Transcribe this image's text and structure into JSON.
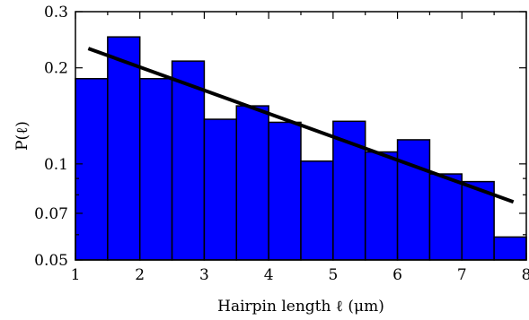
{
  "chart_data": {
    "type": "bar",
    "xlabel": "Hairpin length ℓ (μm)",
    "ylabel": "P(ℓ)",
    "yscale": "log",
    "xlim": [
      1,
      8
    ],
    "ylim": [
      0.05,
      0.3
    ],
    "x_ticks": [
      "1",
      "2",
      "3",
      "4",
      "5",
      "6",
      "7",
      "8"
    ],
    "y_ticks": [
      {
        "value": 0.05,
        "label": "0.05"
      },
      {
        "value": 0.07,
        "label": "0.07"
      },
      {
        "value": 0.1,
        "label": "0.1"
      },
      {
        "value": 0.2,
        "label": "0.2"
      },
      {
        "value": 0.3,
        "label": "0.3"
      }
    ],
    "bins": [
      {
        "x0": 1.0,
        "x1": 1.5,
        "value": 0.185
      },
      {
        "x0": 1.5,
        "x1": 2.0,
        "value": 0.25
      },
      {
        "x0": 2.0,
        "x1": 2.5,
        "value": 0.185
      },
      {
        "x0": 2.5,
        "x1": 3.0,
        "value": 0.21
      },
      {
        "x0": 3.0,
        "x1": 3.5,
        "value": 0.138
      },
      {
        "x0": 3.5,
        "x1": 4.0,
        "value": 0.152
      },
      {
        "x0": 4.0,
        "x1": 4.5,
        "value": 0.135
      },
      {
        "x0": 4.5,
        "x1": 5.0,
        "value": 0.102
      },
      {
        "x0": 5.0,
        "x1": 5.5,
        "value": 0.136
      },
      {
        "x0": 5.5,
        "x1": 6.0,
        "value": 0.109
      },
      {
        "x0": 6.0,
        "x1": 6.5,
        "value": 0.119
      },
      {
        "x0": 6.5,
        "x1": 7.0,
        "value": 0.093
      },
      {
        "x0": 7.0,
        "x1": 7.5,
        "value": 0.088
      },
      {
        "x0": 7.5,
        "x1": 8.0,
        "value": 0.059
      }
    ],
    "fit_line": {
      "x": [
        1.2,
        7.8
      ],
      "y": [
        0.23,
        0.076
      ]
    },
    "colors": {
      "bars": "#0000ff",
      "line": "#000000"
    }
  }
}
